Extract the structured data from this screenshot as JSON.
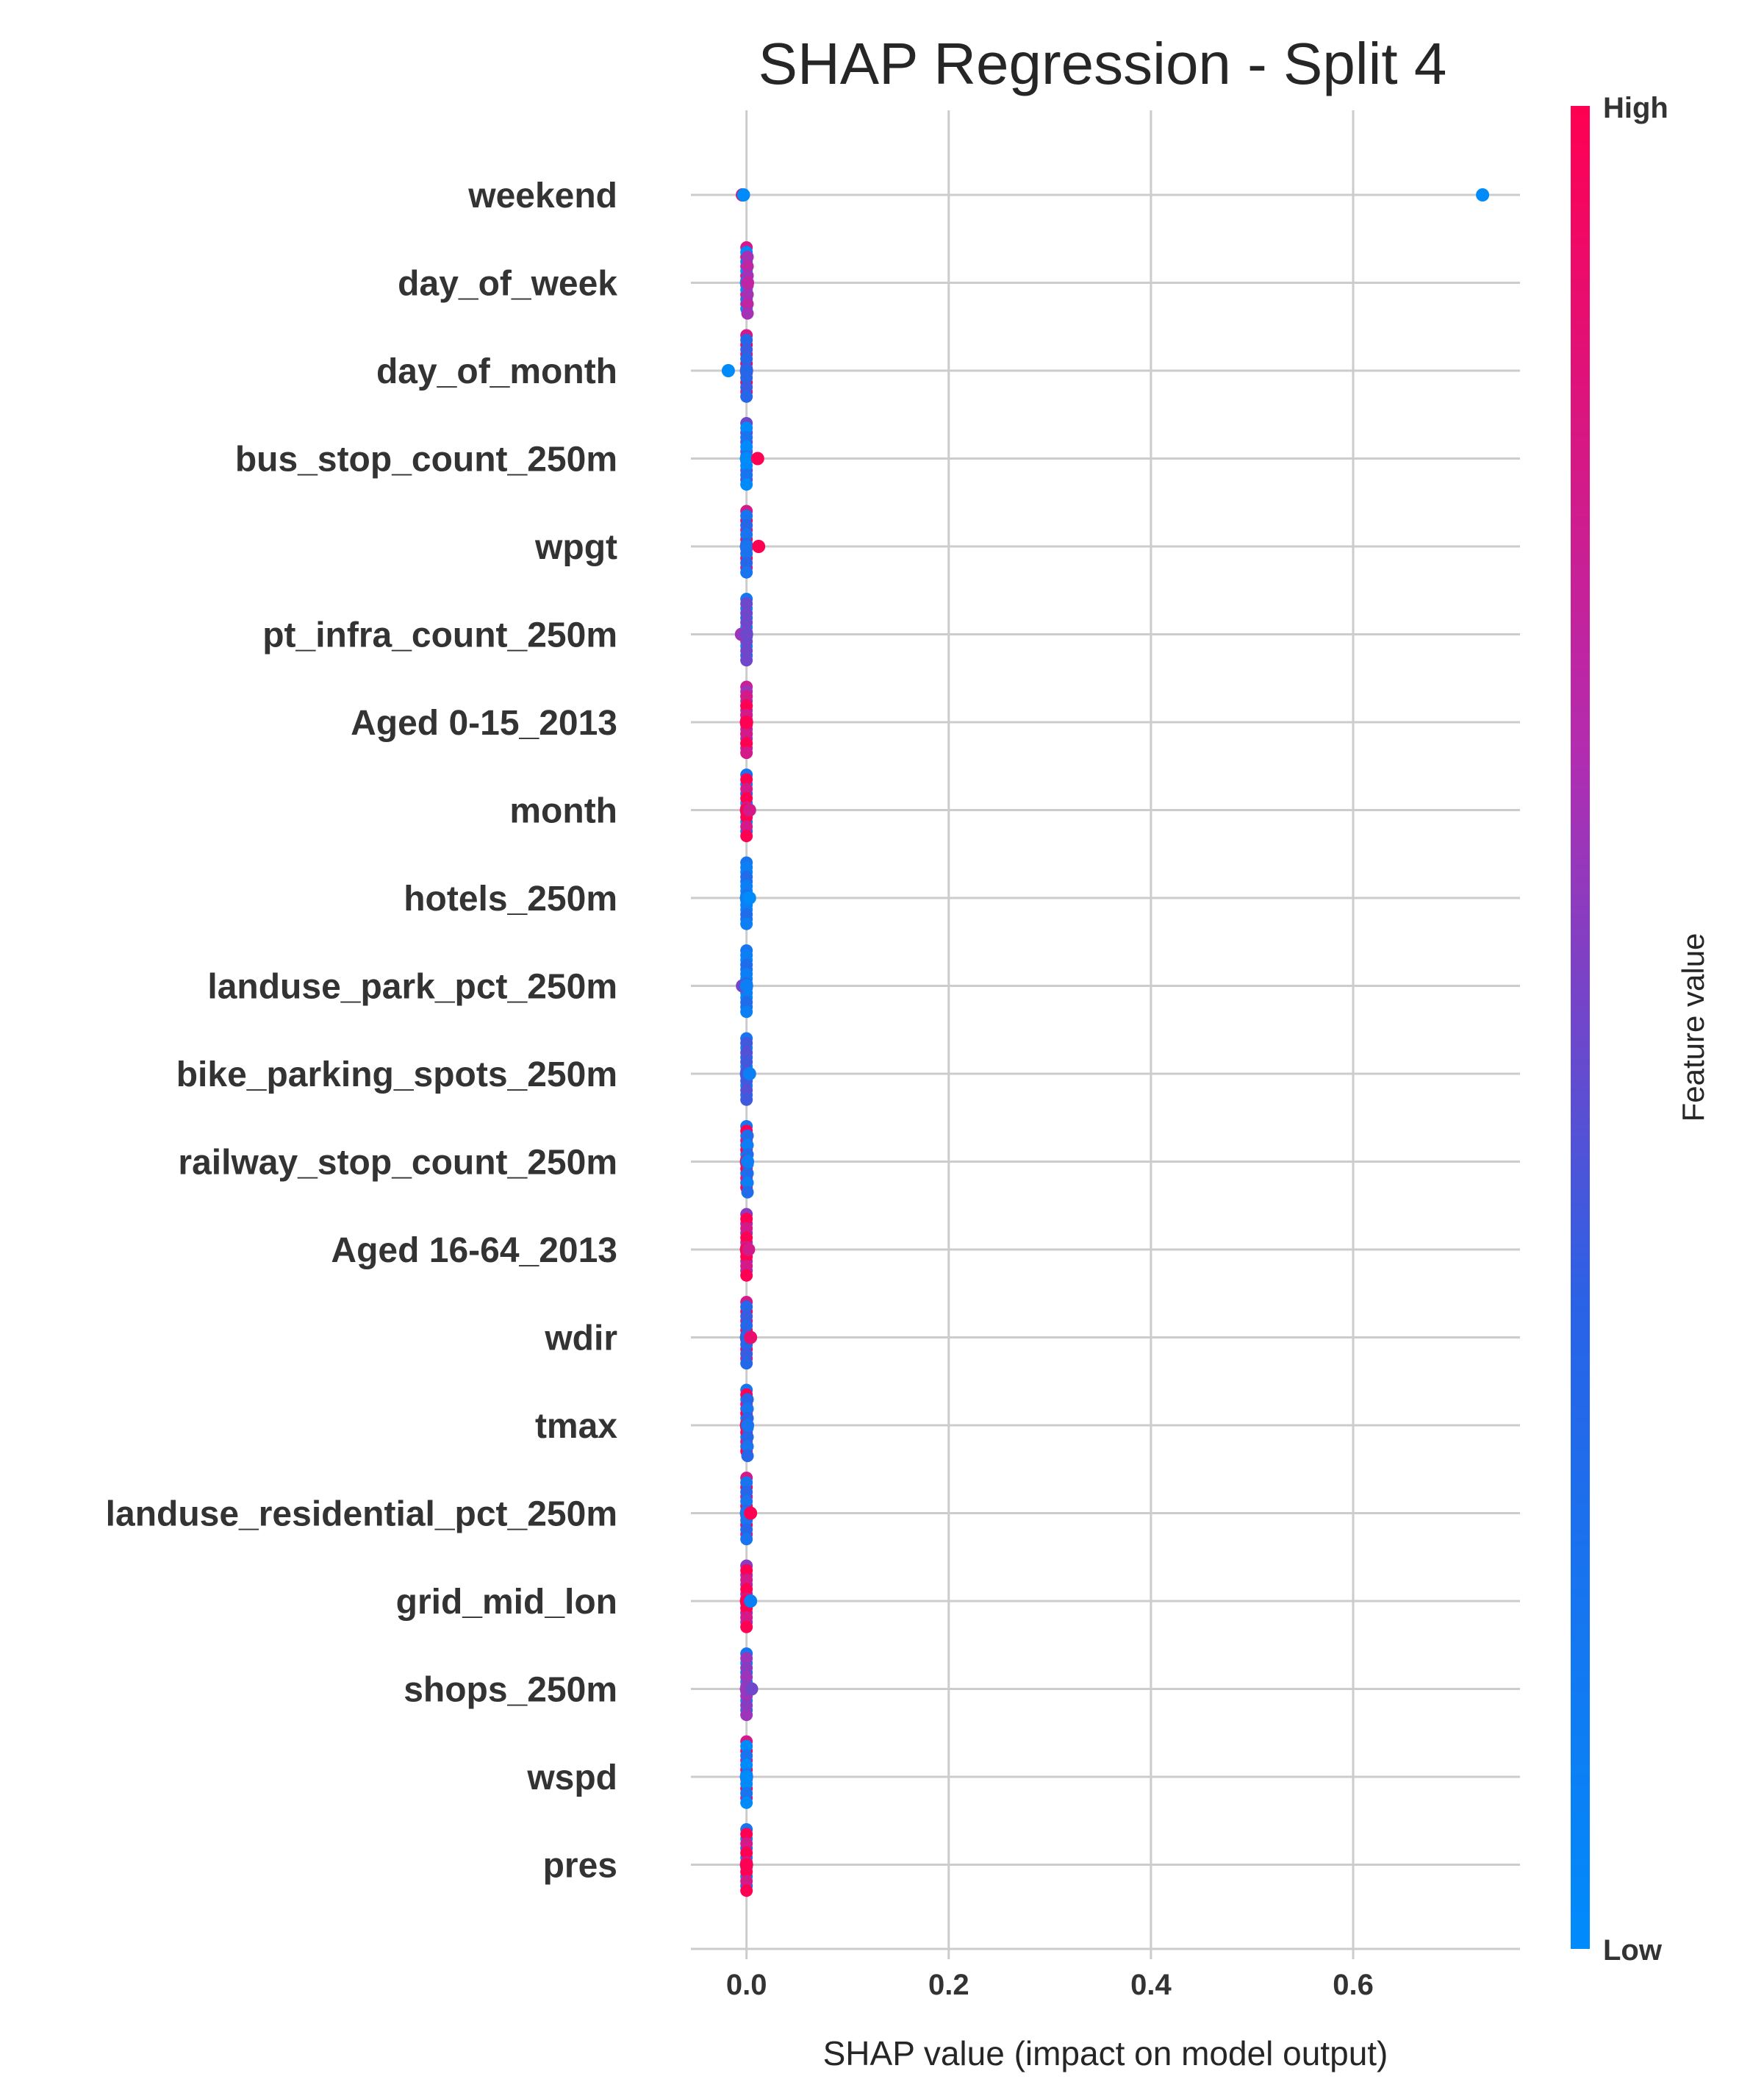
{
  "chart_data": {
    "type": "scatter",
    "title": "SHAP Regression - Split 4",
    "xlabel": "SHAP value (impact on model output)",
    "ylabel": "",
    "xlim": [
      -0.055,
      0.765
    ],
    "xticks": [
      0.0,
      0.2,
      0.4,
      0.6
    ],
    "xtick_labels": [
      "0.0",
      "0.2",
      "0.4",
      "0.6"
    ],
    "grid": true,
    "colorbar": {
      "title": "Feature value",
      "high_label": "High",
      "low_label": "Low",
      "high_color": "#ff0052",
      "low_color": "#008bfb"
    },
    "features": [
      {
        "name": "weekend",
        "points": [
          {
            "x": -0.004,
            "v": 0.5
          },
          {
            "x": -0.004,
            "v": 1
          },
          {
            "x": -0.003,
            "v": 0
          },
          {
            "x": 0.728,
            "v": 0
          }
        ]
      },
      {
        "name": "day_of_week",
        "points": [
          {
            "x": 0.0,
            "v": 1
          },
          {
            "x": 0.0,
            "v": 0
          },
          {
            "x": 0.001,
            "v": 0.7
          }
        ]
      },
      {
        "name": "day_of_month",
        "points": [
          {
            "x": -0.018,
            "v": 0
          },
          {
            "x": 0.0,
            "v": 1
          },
          {
            "x": 0.0,
            "v": 0.3
          }
        ]
      },
      {
        "name": "bus_stop_count_250m",
        "points": [
          {
            "x": 0.0,
            "v": 0.5
          },
          {
            "x": 0.0,
            "v": 0
          },
          {
            "x": 0.011,
            "v": 1
          }
        ]
      },
      {
        "name": "wpgt",
        "points": [
          {
            "x": 0.0,
            "v": 1
          },
          {
            "x": 0.0,
            "v": 0.2
          },
          {
            "x": 0.012,
            "v": 1
          }
        ]
      },
      {
        "name": "pt_infra_count_250m",
        "points": [
          {
            "x": -0.005,
            "v": 0.6
          },
          {
            "x": 0.0,
            "v": 0
          },
          {
            "x": 0.0,
            "v": 0.5
          }
        ]
      },
      {
        "name": "Aged 0-15_2013",
        "points": [
          {
            "x": 0.0,
            "v": 0.9
          },
          {
            "x": 0.0,
            "v": 0.6
          },
          {
            "x": 0.0,
            "v": 1
          }
        ]
      },
      {
        "name": "month",
        "points": [
          {
            "x": 0.0,
            "v": 0
          },
          {
            "x": 0.0,
            "v": 1
          },
          {
            "x": 0.003,
            "v": 0.8
          }
        ]
      },
      {
        "name": "hotels_250m",
        "points": [
          {
            "x": 0.0,
            "v": 0
          },
          {
            "x": 0.0,
            "v": 0.1
          },
          {
            "x": 0.003,
            "v": 0
          }
        ]
      },
      {
        "name": "landuse_park_pct_250m",
        "points": [
          {
            "x": -0.004,
            "v": 0.5
          },
          {
            "x": 0.0,
            "v": 0
          },
          {
            "x": 0.0,
            "v": 0.1
          }
        ]
      },
      {
        "name": "bike_parking_spots_250m",
        "points": [
          {
            "x": 0.0,
            "v": 0
          },
          {
            "x": 0.0,
            "v": 0.4
          },
          {
            "x": 0.003,
            "v": 0.1
          }
        ]
      },
      {
        "name": "railway_stop_count_250m",
        "points": [
          {
            "x": 0.0,
            "v": 0
          },
          {
            "x": 0.0,
            "v": 1
          },
          {
            "x": 0.001,
            "v": 0.1
          }
        ]
      },
      {
        "name": "Aged 16-64_2013",
        "points": [
          {
            "x": 0.0,
            "v": 0.6
          },
          {
            "x": 0.0,
            "v": 1
          },
          {
            "x": 0.002,
            "v": 0.8
          }
        ]
      },
      {
        "name": "wdir",
        "points": [
          {
            "x": 0.0,
            "v": 1
          },
          {
            "x": 0.0,
            "v": 0.3
          },
          {
            "x": 0.004,
            "v": 0.9
          }
        ]
      },
      {
        "name": "tmax",
        "points": [
          {
            "x": 0.0,
            "v": 0
          },
          {
            "x": 0.0,
            "v": 1
          },
          {
            "x": 0.001,
            "v": 0.2
          }
        ]
      },
      {
        "name": "landuse_residential_pct_250m",
        "points": [
          {
            "x": 0.0,
            "v": 1
          },
          {
            "x": 0.0,
            "v": 0.2
          },
          {
            "x": 0.004,
            "v": 1
          }
        ]
      },
      {
        "name": "grid_mid_lon",
        "points": [
          {
            "x": 0.0,
            "v": 0.6
          },
          {
            "x": 0.0,
            "v": 1
          },
          {
            "x": 0.004,
            "v": 0.1
          }
        ]
      },
      {
        "name": "shops_250m",
        "points": [
          {
            "x": 0.0,
            "v": 0
          },
          {
            "x": 0.0,
            "v": 0.6
          },
          {
            "x": 0.005,
            "v": 0.5
          }
        ]
      },
      {
        "name": "wspd",
        "points": [
          {
            "x": 0.0,
            "v": 1
          },
          {
            "x": 0.0,
            "v": 0
          }
        ]
      },
      {
        "name": "pres",
        "points": [
          {
            "x": 0.0,
            "v": 0
          },
          {
            "x": 0.0,
            "v": 1
          }
        ]
      }
    ]
  }
}
